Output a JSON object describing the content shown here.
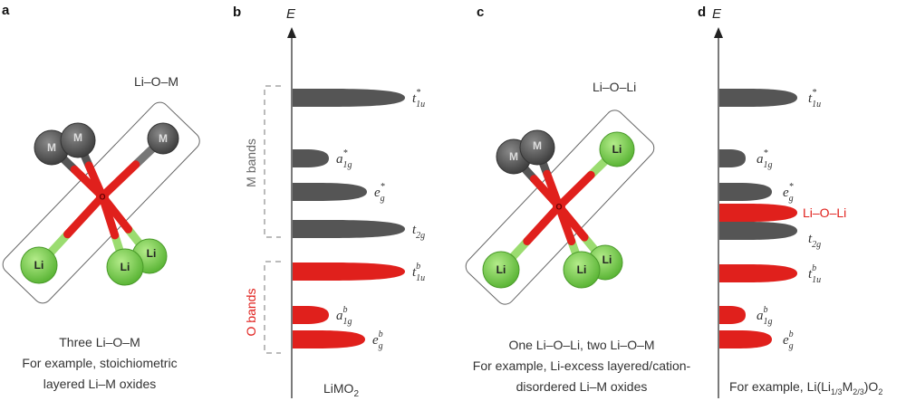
{
  "colors": {
    "metal": "#555555",
    "oxygen": "#e0201c",
    "lithium": "#7ccf4a",
    "o_band": "#e0201c",
    "m_band": "#555555"
  },
  "panels": {
    "a": {
      "label": "a",
      "bond_title": "Li–O–M",
      "caption": [
        "Three Li–O–M",
        "For example, stoichiometric",
        "layered Li–M oxides"
      ]
    },
    "b": {
      "label": "b",
      "axis": "E",
      "m_group": "M bands",
      "o_group": "O bands",
      "compound": "LiMO",
      "compound_sub": "2",
      "bands": [
        {
          "main": "t",
          "sub": "1u",
          "sup": "*",
          "type": "M"
        },
        {
          "main": "a",
          "sub": "1g",
          "sup": "*",
          "type": "M"
        },
        {
          "main": "e",
          "sub": "g",
          "sup": "*",
          "type": "M"
        },
        {
          "main": "t",
          "sub": "2g",
          "sup": "",
          "type": "M"
        },
        {
          "main": "t",
          "sub": "1u",
          "sup": "b",
          "type": "O"
        },
        {
          "main": "a",
          "sub": "1g",
          "sup": "b",
          "type": "O"
        },
        {
          "main": "e",
          "sub": "g",
          "sup": "b",
          "type": "O"
        }
      ]
    },
    "c": {
      "label": "c",
      "bond_title": "Li–O–Li",
      "caption": [
        "One Li–O–Li, two Li–O–M",
        "For example, Li-excess layered/cation-",
        "disordered Li–M oxides"
      ]
    },
    "d": {
      "label": "d",
      "axis": "E",
      "li_o_li": "Li–O–Li",
      "caption": {
        "pre": "For example, Li(Li",
        "s1": "1/3",
        "m": "M",
        "s2": "2/3",
        "post": ")O",
        "s3": "2"
      },
      "bands": [
        {
          "main": "t",
          "sub": "1u",
          "sup": "*",
          "type": "M"
        },
        {
          "main": "a",
          "sub": "1g",
          "sup": "*",
          "type": "M"
        },
        {
          "main": "e",
          "sub": "g",
          "sup": "*",
          "type": "M"
        },
        {
          "main": "",
          "sub": "",
          "sup": "",
          "type": "Li-O-Li"
        },
        {
          "main": "t",
          "sub": "2g",
          "sup": "",
          "type": "M"
        },
        {
          "main": "t",
          "sub": "1u",
          "sup": "b",
          "type": "O"
        },
        {
          "main": "a",
          "sub": "1g",
          "sup": "b",
          "type": "O"
        },
        {
          "main": "e",
          "sub": "g",
          "sup": "b",
          "type": "O"
        }
      ]
    }
  },
  "atoms": {
    "metal": "M",
    "oxygen": "O",
    "lithium": "Li"
  }
}
